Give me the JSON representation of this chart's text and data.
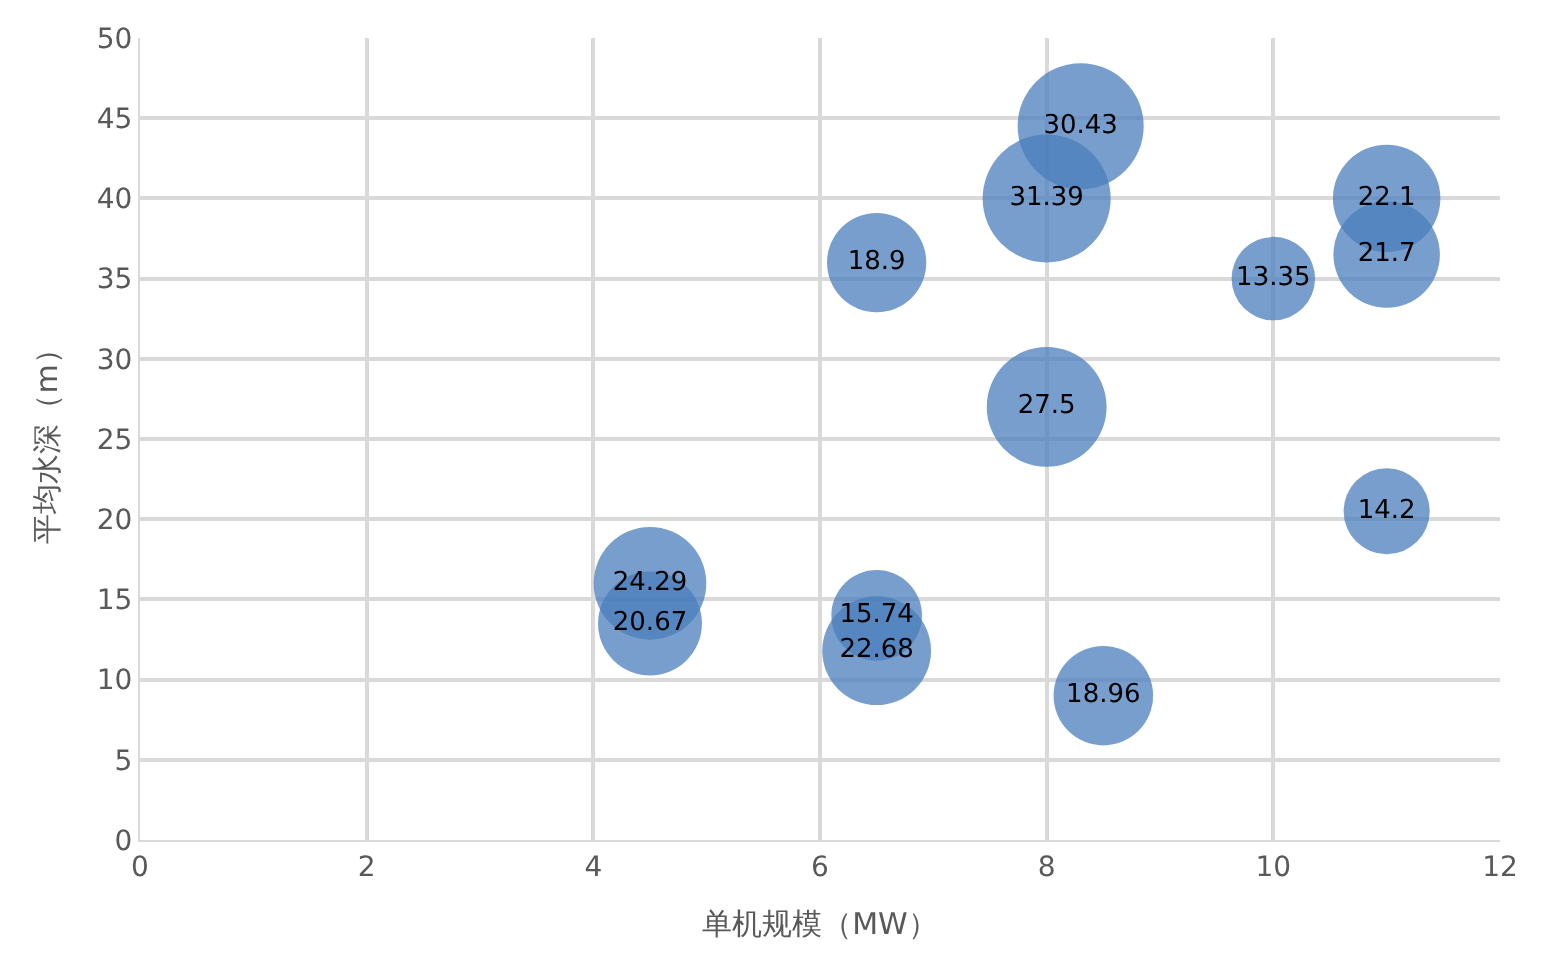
{
  "chart_data": {
    "type": "bubble",
    "xlabel": "单机规模（MW）",
    "ylabel": "平均水深（m）",
    "x": [
      8.3,
      8,
      11,
      11,
      10,
      6.5,
      8,
      11,
      4.5,
      4.5,
      6.5,
      6.5,
      8.5
    ],
    "values": [
      44.5,
      40,
      40,
      36.5,
      35,
      36,
      27,
      20.5,
      16,
      13.5,
      14,
      11.8,
      9
    ],
    "sizes": [
      30.43,
      31.39,
      22.1,
      21.7,
      13.35,
      18.9,
      27.5,
      14.2,
      24.29,
      20.67,
      15.74,
      22.68,
      18.96
    ],
    "value_labels": [
      "30.43",
      "31.39",
      "22.1",
      "21.7",
      "13.35",
      "18.9",
      "27.5",
      "14.2",
      "24.29",
      "20.67",
      "15.74",
      "22.68",
      "18.96"
    ],
    "color": "#4a7ebb",
    "xlim": [
      0,
      12
    ],
    "xticks": [
      0,
      2,
      4,
      6,
      8,
      10,
      12
    ],
    "ylim": [
      0,
      50
    ],
    "yticks": [
      0,
      5,
      10,
      15,
      20,
      25,
      30,
      35,
      40,
      45,
      50
    ],
    "grid": true,
    "legend": false
  }
}
